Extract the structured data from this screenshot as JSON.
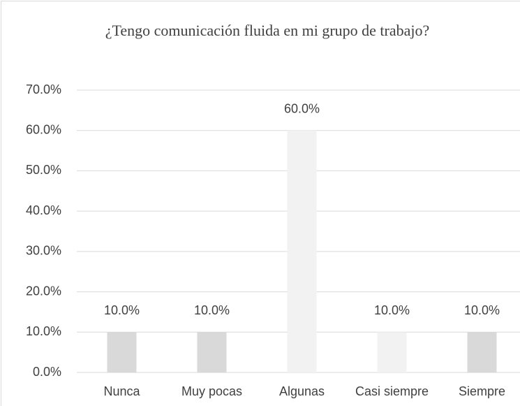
{
  "chart_data": {
    "type": "bar",
    "title": "¿Tengo comunicación fluida en mi grupo de trabajo?",
    "categories": [
      "Nunca",
      "Muy pocas",
      "Algunas",
      "Casi siempre",
      "Siempre"
    ],
    "values": [
      10,
      10,
      60,
      10,
      10
    ],
    "value_labels": [
      "10.0%",
      "10.0%",
      "60.0%",
      "10.0%",
      "10.0%"
    ],
    "colors": [
      "#d9d9d9",
      "#d9d9d9",
      "#f2f2f2",
      "#f2f2f2",
      "#d9d9d9"
    ],
    "ylim": [
      0,
      70
    ],
    "yticks": [
      {
        "value": 0,
        "label": "0.0%"
      },
      {
        "value": 10,
        "label": "10.0%"
      },
      {
        "value": 20,
        "label": "20.0%"
      },
      {
        "value": 30,
        "label": "30.0%"
      },
      {
        "value": 40,
        "label": "40.0%"
      },
      {
        "value": 50,
        "label": "50.0%"
      },
      {
        "value": 60,
        "label": "60.0%"
      },
      {
        "value": 70,
        "label": "70.0%"
      }
    ],
    "grid": true
  }
}
